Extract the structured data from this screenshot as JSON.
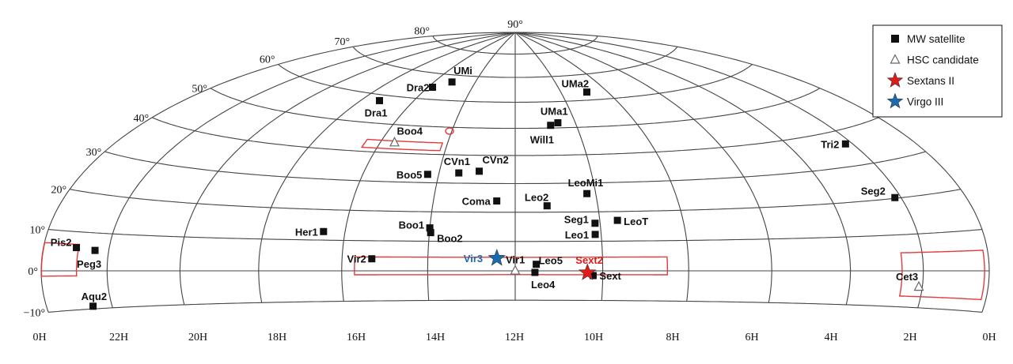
{
  "chart_data": {
    "type": "scatter",
    "projection": "Hammer-Aitoff (half-sky, Dec -10 to 90, RA 0H to 0H)",
    "ra_ticks": [
      "0H",
      "22H",
      "20H",
      "18H",
      "16H",
      "14H",
      "12H",
      "10H",
      "8H",
      "6H",
      "4H",
      "2H",
      "0H"
    ],
    "dec_ticks": [
      "90°",
      "80°",
      "70°",
      "60°",
      "50°",
      "40°",
      "30°",
      "20°",
      "10°",
      "0°",
      "−10°"
    ],
    "legend": {
      "position": "top-right",
      "entries": [
        {
          "key": "mw",
          "label": "MW satellite",
          "marker": "square",
          "color": "#111111"
        },
        {
          "key": "hsc",
          "label": "HSC candidate",
          "marker": "triangle-open",
          "color": "#777777"
        },
        {
          "key": "sext2",
          "label": "Sextans II",
          "marker": "star",
          "color": "#e01919"
        },
        {
          "key": "vir3",
          "label": "Virgo III",
          "marker": "star",
          "color": "#1a6bb0"
        }
      ]
    },
    "series": [
      {
        "name": "MW satellite",
        "points": [
          {
            "label": "UMi",
            "ra": 15.15,
            "dec": 67.2
          },
          {
            "label": "Dra2",
            "ra": 15.8,
            "dec": 64.6
          },
          {
            "label": "Dra1",
            "ra": 17.3,
            "dec": 57.9
          },
          {
            "label": "UMa2",
            "ra": 8.88,
            "dec": 63.1
          },
          {
            "label": "UMa1",
            "ra": 10.58,
            "dec": 51.9
          },
          {
            "label": "Will1",
            "ra": 10.84,
            "dec": 51.0
          },
          {
            "label": "Tri2",
            "ra": 2.22,
            "dec": 36.2
          },
          {
            "label": "CVn1",
            "ra": 13.48,
            "dec": 33.6
          },
          {
            "label": "CVn2",
            "ra": 12.95,
            "dec": 34.3
          },
          {
            "label": "Boo5",
            "ra": 14.29,
            "dec": 32.9
          },
          {
            "label": "LeoMi1",
            "ra": 10.22,
            "dec": 26.3
          },
          {
            "label": "Seg2",
            "ra": 2.18,
            "dec": 20.2
          },
          {
            "label": "Coma",
            "ra": 12.45,
            "dec": 23.9
          },
          {
            "label": "Leo2",
            "ra": 11.23,
            "dec": 22.2
          },
          {
            "label": "LeoT",
            "ra": 9.58,
            "dec": 17.0
          },
          {
            "label": "Seg1",
            "ra": 10.12,
            "dec": 16.1
          },
          {
            "label": "Leo1",
            "ra": 10.14,
            "dec": 12.3
          },
          {
            "label": "Her1",
            "ra": 16.52,
            "dec": 12.8
          },
          {
            "label": "Boo1",
            "ra": 14.0,
            "dec": 14.5
          },
          {
            "label": "Boo2",
            "ra": 13.97,
            "dec": 12.9
          },
          {
            "label": "Pis2",
            "ra": 22.97,
            "dec": 5.95
          },
          {
            "label": "Peg3",
            "ra": 22.4,
            "dec": 5.4
          },
          {
            "label": "Vir2",
            "ra": 15.3,
            "dec": 4.0
          },
          {
            "label": "Leo5",
            "ra": 11.52,
            "dec": 2.22
          },
          {
            "label": "Leo4",
            "ra": 11.55,
            "dec": -0.54
          },
          {
            "label": "Sext",
            "ra": 10.22,
            "dec": -1.6
          },
          {
            "label": "Aqu2",
            "ra": 22.56,
            "dec": -9.3
          }
        ]
      },
      {
        "name": "HSC candidate",
        "points": [
          {
            "label": "Boo4",
            "ra": 15.58,
            "dec": 43.7
          },
          {
            "label": "Vir1",
            "ra": 12.0,
            "dec": 0.1
          },
          {
            "label": "Cet3",
            "ra": 2.1,
            "dec": -4.3
          }
        ]
      },
      {
        "name": "Sextans II",
        "points": [
          {
            "label": "Sext2",
            "ra": 10.35,
            "dec": -0.6
          }
        ]
      },
      {
        "name": "Virgo III",
        "points": [
          {
            "label": "Vir3",
            "ra": 12.42,
            "dec": 4.3
          }
        ]
      }
    ]
  }
}
